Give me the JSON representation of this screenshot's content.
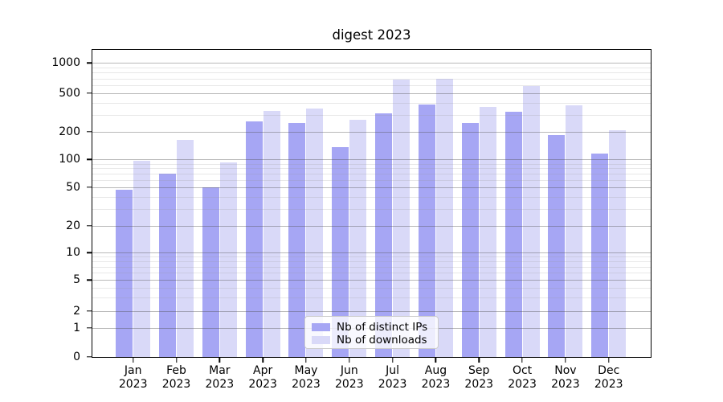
{
  "chart": {
    "title": "digest 2023"
  },
  "chart_data": {
    "type": "bar",
    "title": "digest 2023",
    "categories": [
      "Jan 2023",
      "Feb 2023",
      "Mar 2023",
      "Apr 2023",
      "May 2023",
      "Jun 2023",
      "Jul 2023",
      "Aug 2023",
      "Sep 2023",
      "Oct 2023",
      "Nov 2023",
      "Dec 2023"
    ],
    "series": [
      {
        "name": "Nb of distinct IPs",
        "color": "#a6a6f4",
        "values": [
          47,
          70,
          50,
          255,
          247,
          137,
          310,
          385,
          245,
          325,
          185,
          117
        ]
      },
      {
        "name": "Nb of downloads",
        "color": "#d9d9f8",
        "values": [
          97,
          165,
          93,
          330,
          350,
          265,
          680,
          700,
          360,
          595,
          375,
          207
        ]
      }
    ],
    "yscale": "symlog",
    "yticks": [
      0,
      1,
      2,
      5,
      10,
      20,
      50,
      100,
      200,
      500,
      1000
    ],
    "minor_yticks": [
      3,
      4,
      6,
      7,
      8,
      9,
      30,
      40,
      60,
      70,
      80,
      90,
      300,
      400,
      600,
      700,
      800,
      900
    ],
    "ylim": [
      0,
      1300
    ],
    "xlabel": "",
    "ylabel": "",
    "grid": true,
    "legend_position": "lower center",
    "grid_major_color": "#808080",
    "grid_minor_color": "#c8c8c8"
  }
}
